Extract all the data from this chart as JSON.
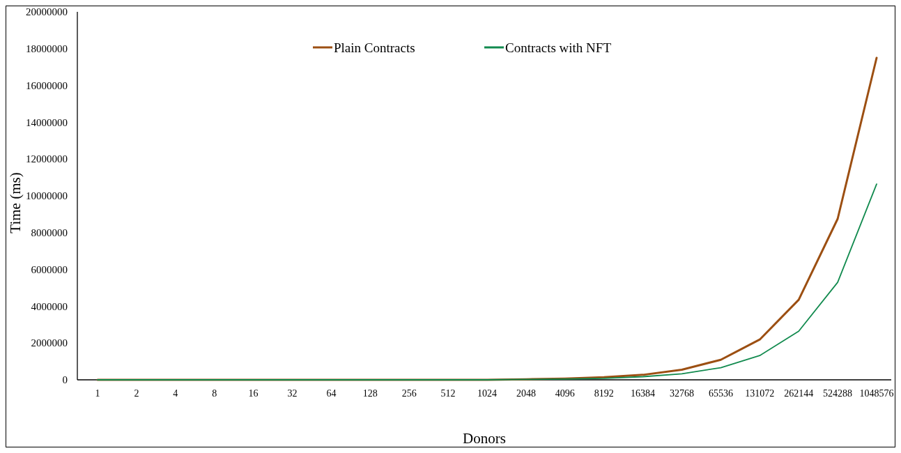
{
  "chart_data": {
    "type": "line",
    "xlabel": "Donors",
    "ylabel": "Time (ms)",
    "categories": [
      "1",
      "2",
      "4",
      "8",
      "16",
      "32",
      "64",
      "128",
      "256",
      "512",
      "1024",
      "2048",
      "4096",
      "8192",
      "16384",
      "32768",
      "65536",
      "131072",
      "262144",
      "524288",
      "1048576"
    ],
    "series": [
      {
        "name": "Plain Contracts",
        "color": "#9c4f12",
        "values": [
          0,
          0,
          0,
          0,
          0,
          0,
          0,
          0,
          0,
          0,
          0,
          30000,
          70000,
          140000,
          270000,
          550000,
          1090000,
          2190000,
          4350000,
          8750000,
          17500000
        ]
      },
      {
        "name": "Contracts with NFT",
        "color": "#118a4e",
        "values": [
          0,
          0,
          0,
          0,
          0,
          0,
          0,
          0,
          0,
          0,
          0,
          20000,
          40000,
          80000,
          170000,
          330000,
          660000,
          1320000,
          2640000,
          5300000,
          10640000
        ]
      }
    ],
    "ylim": [
      0,
      20000000
    ],
    "yticks": [
      0,
      2000000,
      4000000,
      6000000,
      8000000,
      10000000,
      12000000,
      14000000,
      16000000,
      18000000,
      20000000
    ],
    "grid": false,
    "legend": "top",
    "marker": "none",
    "line_style": "solid"
  }
}
